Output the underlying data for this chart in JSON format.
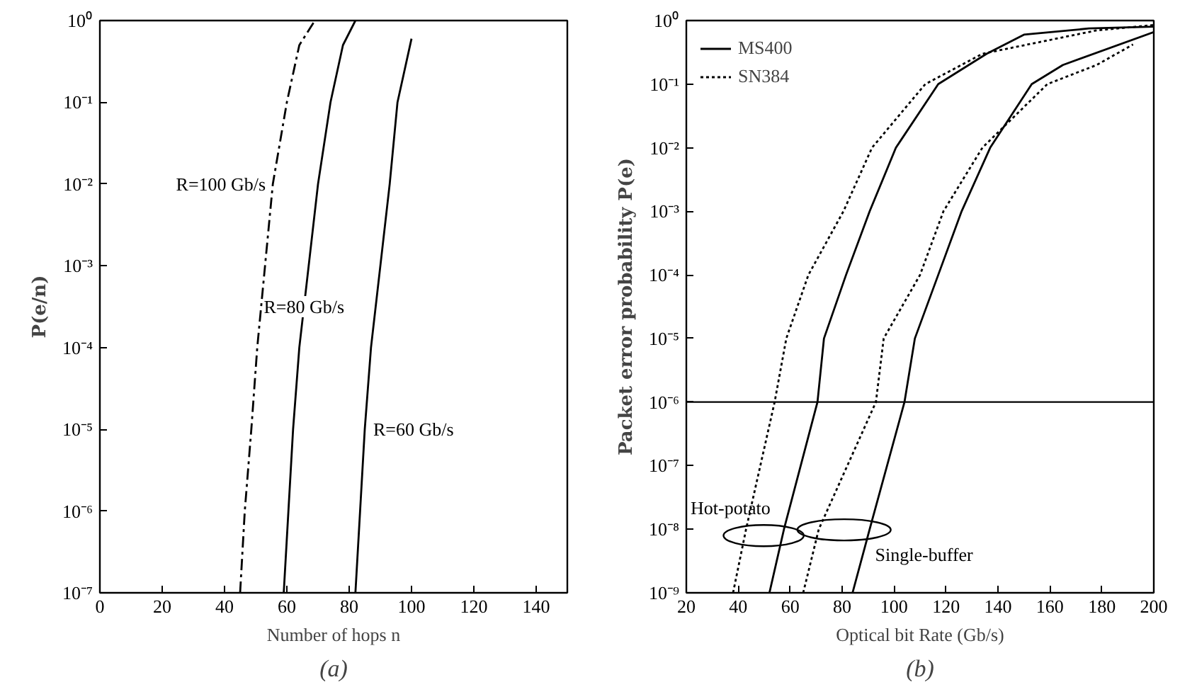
{
  "chart_data": [
    {
      "type": "line",
      "ylabel": "P(e/n)",
      "xlabel": "Number of hops n",
      "log": "y",
      "xlim": [
        0,
        150
      ],
      "xticks": [
        0,
        20,
        40,
        60,
        80,
        100,
        120,
        140
      ],
      "ylim": [
        1e-07,
        1
      ],
      "yticks": [
        {
          "value": 1,
          "label": "10⁰"
        },
        {
          "value": 0.1,
          "label": "10⁻¹"
        },
        {
          "value": 0.01,
          "label": "10⁻²"
        },
        {
          "value": 0.001,
          "label": "10⁻³"
        },
        {
          "value": 0.0001,
          "label": "10⁻⁴"
        },
        {
          "value": 1e-05,
          "label": "10⁻⁵"
        },
        {
          "value": 1e-06,
          "label": "10⁻⁶"
        },
        {
          "value": 1e-07,
          "label": "10⁻⁷"
        }
      ],
      "series": [
        {
          "name": "R=100 Gb/s",
          "color": "#000000",
          "line_style": "dashed",
          "x": [
            45,
            46.5,
            48.6,
            50.5,
            53,
            55.5,
            60,
            64,
            69
          ],
          "values": [
            1e-07,
            1e-06,
            1e-05,
            0.0001,
            0.001,
            0.01,
            0.1,
            0.5,
            1
          ]
        },
        {
          "name": "R=80 Gb/s",
          "color": "#000000",
          "line_style": "solid",
          "x": [
            59,
            60.5,
            62,
            64,
            67,
            70,
            74,
            78,
            82
          ],
          "values": [
            1e-07,
            1e-06,
            1e-05,
            0.0001,
            0.001,
            0.01,
            0.1,
            0.5,
            1
          ]
        },
        {
          "name": "R=60 Gb/s",
          "color": "#000000",
          "line_style": "solid",
          "x": [
            82,
            83.5,
            85,
            87,
            90,
            93,
            95.5,
            100
          ],
          "values": [
            1e-07,
            1e-06,
            1e-05,
            0.0001,
            0.001,
            0.01,
            0.1,
            0.6
          ]
        }
      ],
      "annotations": [
        "(a)"
      ]
    },
    {
      "type": "line",
      "ylabel": "Packet error probability P(e)",
      "xlabel": "Optical bit Rate (Gb/s)",
      "log": "y",
      "legend": "top left",
      "xlim": [
        20,
        200
      ],
      "xticks": [
        20,
        40,
        60,
        80,
        100,
        120,
        140,
        160,
        180,
        200
      ],
      "ylim": [
        1e-09,
        1
      ],
      "yticks": [
        {
          "value": 1,
          "label": "10⁰"
        },
        {
          "value": 0.1,
          "label": "10⁻¹"
        },
        {
          "value": 0.01,
          "label": "10⁻²"
        },
        {
          "value": 0.001,
          "label": "10⁻³"
        },
        {
          "value": 0.0001,
          "label": "10⁻⁴"
        },
        {
          "value": 1e-05,
          "label": "10⁻⁵"
        },
        {
          "value": 1e-06,
          "label": "10⁻⁶"
        },
        {
          "value": 1e-07,
          "label": "10⁻⁷"
        },
        {
          "value": 1e-08,
          "label": "10⁻⁸"
        },
        {
          "value": 1e-09,
          "label": "10⁻⁹"
        }
      ],
      "series": [
        {
          "name": "MS400",
          "color": "#000000",
          "line_style": "solid",
          "x": [
            52,
            57.6,
            70.5,
            73,
            81.5,
            90.6,
            100.7,
            117,
            135.6,
            150,
            175,
            200
          ],
          "values": [
            1e-09,
            1e-08,
            1e-06,
            1e-05,
            0.0001,
            0.001,
            0.01,
            0.1,
            0.3,
            0.6,
            0.75,
            0.8
          ]
        },
        {
          "name": "SN384",
          "color": "#000000",
          "line_style": "dotted",
          "x": [
            38,
            43,
            54,
            58.5,
            67,
            80.5,
            91.5,
            112,
            134,
            178,
            200
          ],
          "values": [
            1e-09,
            1e-08,
            1e-06,
            1e-05,
            0.0001,
            0.001,
            0.01,
            0.1,
            0.3,
            0.7,
            0.85
          ]
        },
        {
          "color": "#000000",
          "line_style": "solid",
          "x": [
            84,
            90.6,
            104,
            108,
            117,
            126,
            137,
            153,
            165,
            200
          ],
          "values": [
            1e-09,
            1e-08,
            1e-06,
            1e-05,
            0.0001,
            0.001,
            0.01,
            0.1,
            0.2,
            0.66
          ]
        },
        {
          "color": "#000000",
          "line_style": "dotted",
          "x": [
            65,
            71,
            93,
            96,
            110,
            119,
            134,
            159,
            178,
            192
          ],
          "values": [
            1e-09,
            1e-08,
            1e-06,
            1e-05,
            0.0001,
            0.001,
            0.01,
            0.1,
            0.2,
            0.42
          ]
        }
      ],
      "ref_lines": [
        {
          "axis": "y",
          "value": 1e-06,
          "color": "#000000",
          "line_style": "solid"
        }
      ],
      "annotations": [
        "Hot-potato",
        "Single-buffer",
        "(b)"
      ]
    }
  ]
}
